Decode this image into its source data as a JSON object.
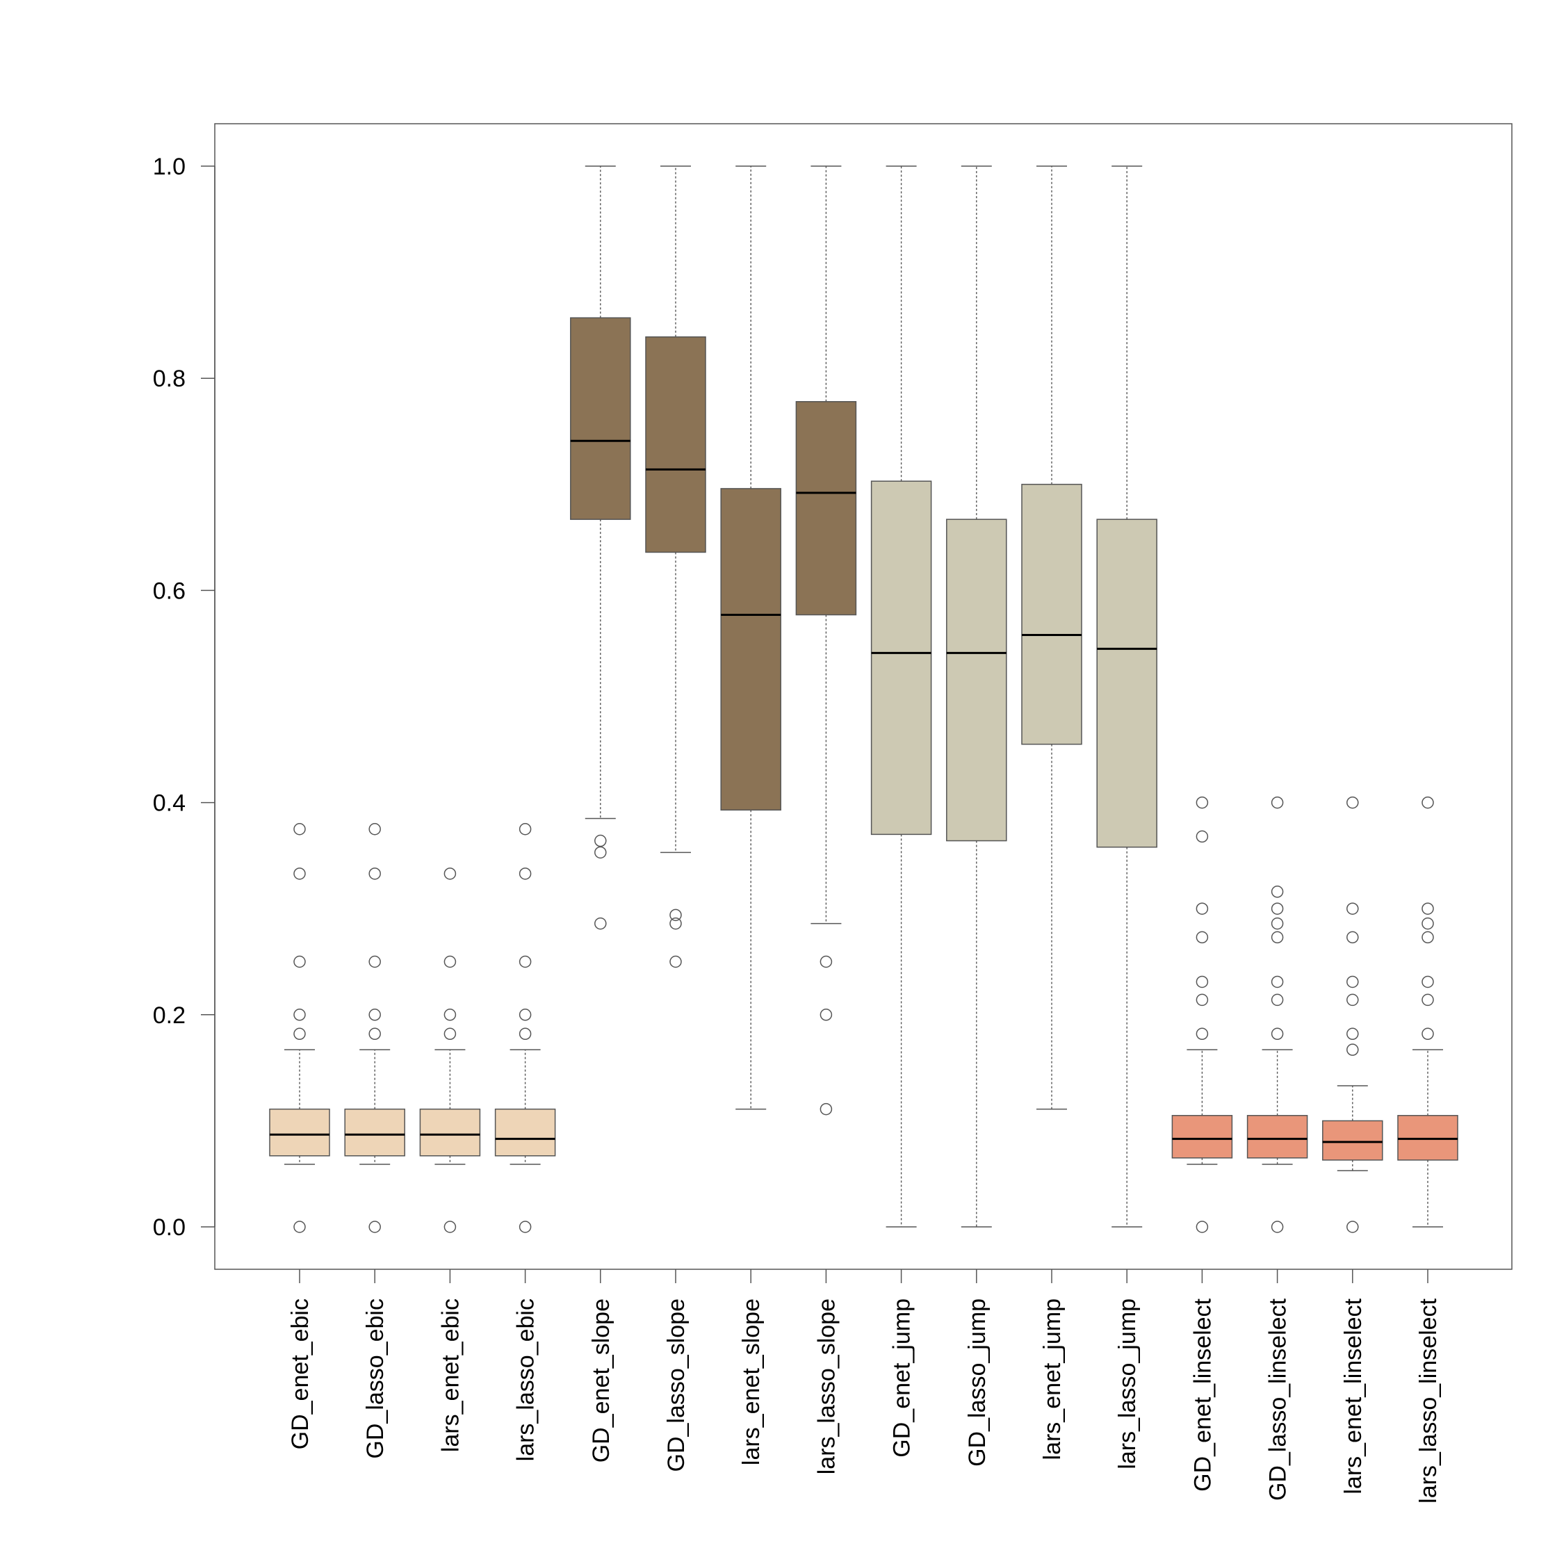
{
  "chart_data": {
    "type": "boxplot",
    "title": "",
    "xlabel": "",
    "ylabel": "",
    "ylim": [
      -0.04,
      1.04
    ],
    "yticks": [
      0.0,
      0.2,
      0.4,
      0.6,
      0.8,
      1.0
    ],
    "ytick_labels": [
      "0.0",
      "0.2",
      "0.4",
      "0.6",
      "0.8",
      "1.0"
    ],
    "grid": false,
    "legend": "none",
    "categories": [
      "GD_enet_ebic",
      "GD_lasso_ebic",
      "lars_enet_ebic",
      "lars_lasso_ebic",
      "GD_enet_slope",
      "GD_lasso_slope",
      "lars_enet_slope",
      "lars_lasso_slope",
      "GD_enet_jump",
      "GD_lasso_jump",
      "lars_enet_jump",
      "lars_lasso_jump",
      "GD_enet_linselect",
      "GD_lasso_linselect",
      "lars_enet_linselect",
      "lars_lasso_linselect"
    ],
    "colors": [
      "#EED5B7",
      "#EED5B7",
      "#EED5B7",
      "#EED5B7",
      "#8B7355",
      "#8B7355",
      "#8B7355",
      "#8B7355",
      "#CDC9B3",
      "#CDC9B3",
      "#CDC9B3",
      "#CDC9B3",
      "#E9967A",
      "#E9967A",
      "#E9967A",
      "#E9967A"
    ],
    "boxes": [
      {
        "whisker_low": 0.059,
        "q1": 0.067,
        "median": 0.087,
        "q3": 0.111,
        "whisker_high": 0.167,
        "outliers": [
          0.0,
          0.182,
          0.2,
          0.25,
          0.333,
          0.375
        ]
      },
      {
        "whisker_low": 0.059,
        "q1": 0.067,
        "median": 0.087,
        "q3": 0.111,
        "whisker_high": 0.167,
        "outliers": [
          0.0,
          0.182,
          0.2,
          0.25,
          0.333,
          0.375
        ]
      },
      {
        "whisker_low": 0.059,
        "q1": 0.067,
        "median": 0.087,
        "q3": 0.111,
        "whisker_high": 0.167,
        "outliers": [
          0.0,
          0.182,
          0.2,
          0.25,
          0.333
        ]
      },
      {
        "whisker_low": 0.059,
        "q1": 0.067,
        "median": 0.083,
        "q3": 0.111,
        "whisker_high": 0.167,
        "outliers": [
          0.0,
          0.182,
          0.2,
          0.25,
          0.333,
          0.375
        ]
      },
      {
        "whisker_low": 0.385,
        "q1": 0.667,
        "median": 0.741,
        "q3": 0.857,
        "whisker_high": 1.0,
        "outliers": [
          0.286,
          0.353,
          0.364
        ]
      },
      {
        "whisker_low": 0.353,
        "q1": 0.636,
        "median": 0.714,
        "q3": 0.839,
        "whisker_high": 1.0,
        "outliers": [
          0.25,
          0.286,
          0.294
        ]
      },
      {
        "whisker_low": 0.111,
        "q1": 0.393,
        "median": 0.577,
        "q3": 0.696,
        "whisker_high": 1.0,
        "outliers": []
      },
      {
        "whisker_low": 0.286,
        "q1": 0.577,
        "median": 0.692,
        "q3": 0.778,
        "whisker_high": 1.0,
        "outliers": [
          0.111,
          0.2,
          0.25
        ]
      },
      {
        "whisker_low": 0.0,
        "q1": 0.37,
        "median": 0.541,
        "q3": 0.703,
        "whisker_high": 1.0,
        "outliers": []
      },
      {
        "whisker_low": 0.0,
        "q1": 0.364,
        "median": 0.541,
        "q3": 0.667,
        "whisker_high": 1.0,
        "outliers": []
      },
      {
        "whisker_low": 0.111,
        "q1": 0.455,
        "median": 0.558,
        "q3": 0.7,
        "whisker_high": 1.0,
        "outliers": []
      },
      {
        "whisker_low": 0.0,
        "q1": 0.358,
        "median": 0.545,
        "q3": 0.667,
        "whisker_high": 1.0,
        "outliers": []
      },
      {
        "whisker_low": 0.059,
        "q1": 0.065,
        "median": 0.083,
        "q3": 0.105,
        "whisker_high": 0.167,
        "outliers": [
          0.0,
          0.182,
          0.214,
          0.231,
          0.273,
          0.3,
          0.368,
          0.4
        ]
      },
      {
        "whisker_low": 0.059,
        "q1": 0.065,
        "median": 0.083,
        "q3": 0.105,
        "whisker_high": 0.167,
        "outliers": [
          0.0,
          0.182,
          0.214,
          0.231,
          0.273,
          0.286,
          0.3,
          0.316,
          0.4
        ]
      },
      {
        "whisker_low": 0.053,
        "q1": 0.063,
        "median": 0.08,
        "q3": 0.1,
        "whisker_high": 0.133,
        "outliers": [
          0.0,
          0.167,
          0.182,
          0.214,
          0.231,
          0.273,
          0.3,
          0.4
        ]
      },
      {
        "whisker_low": 0.0,
        "q1": 0.063,
        "median": 0.083,
        "q3": 0.105,
        "whisker_high": 0.167,
        "outliers": [
          0.182,
          0.214,
          0.231,
          0.273,
          0.286,
          0.3,
          0.4
        ]
      }
    ]
  }
}
